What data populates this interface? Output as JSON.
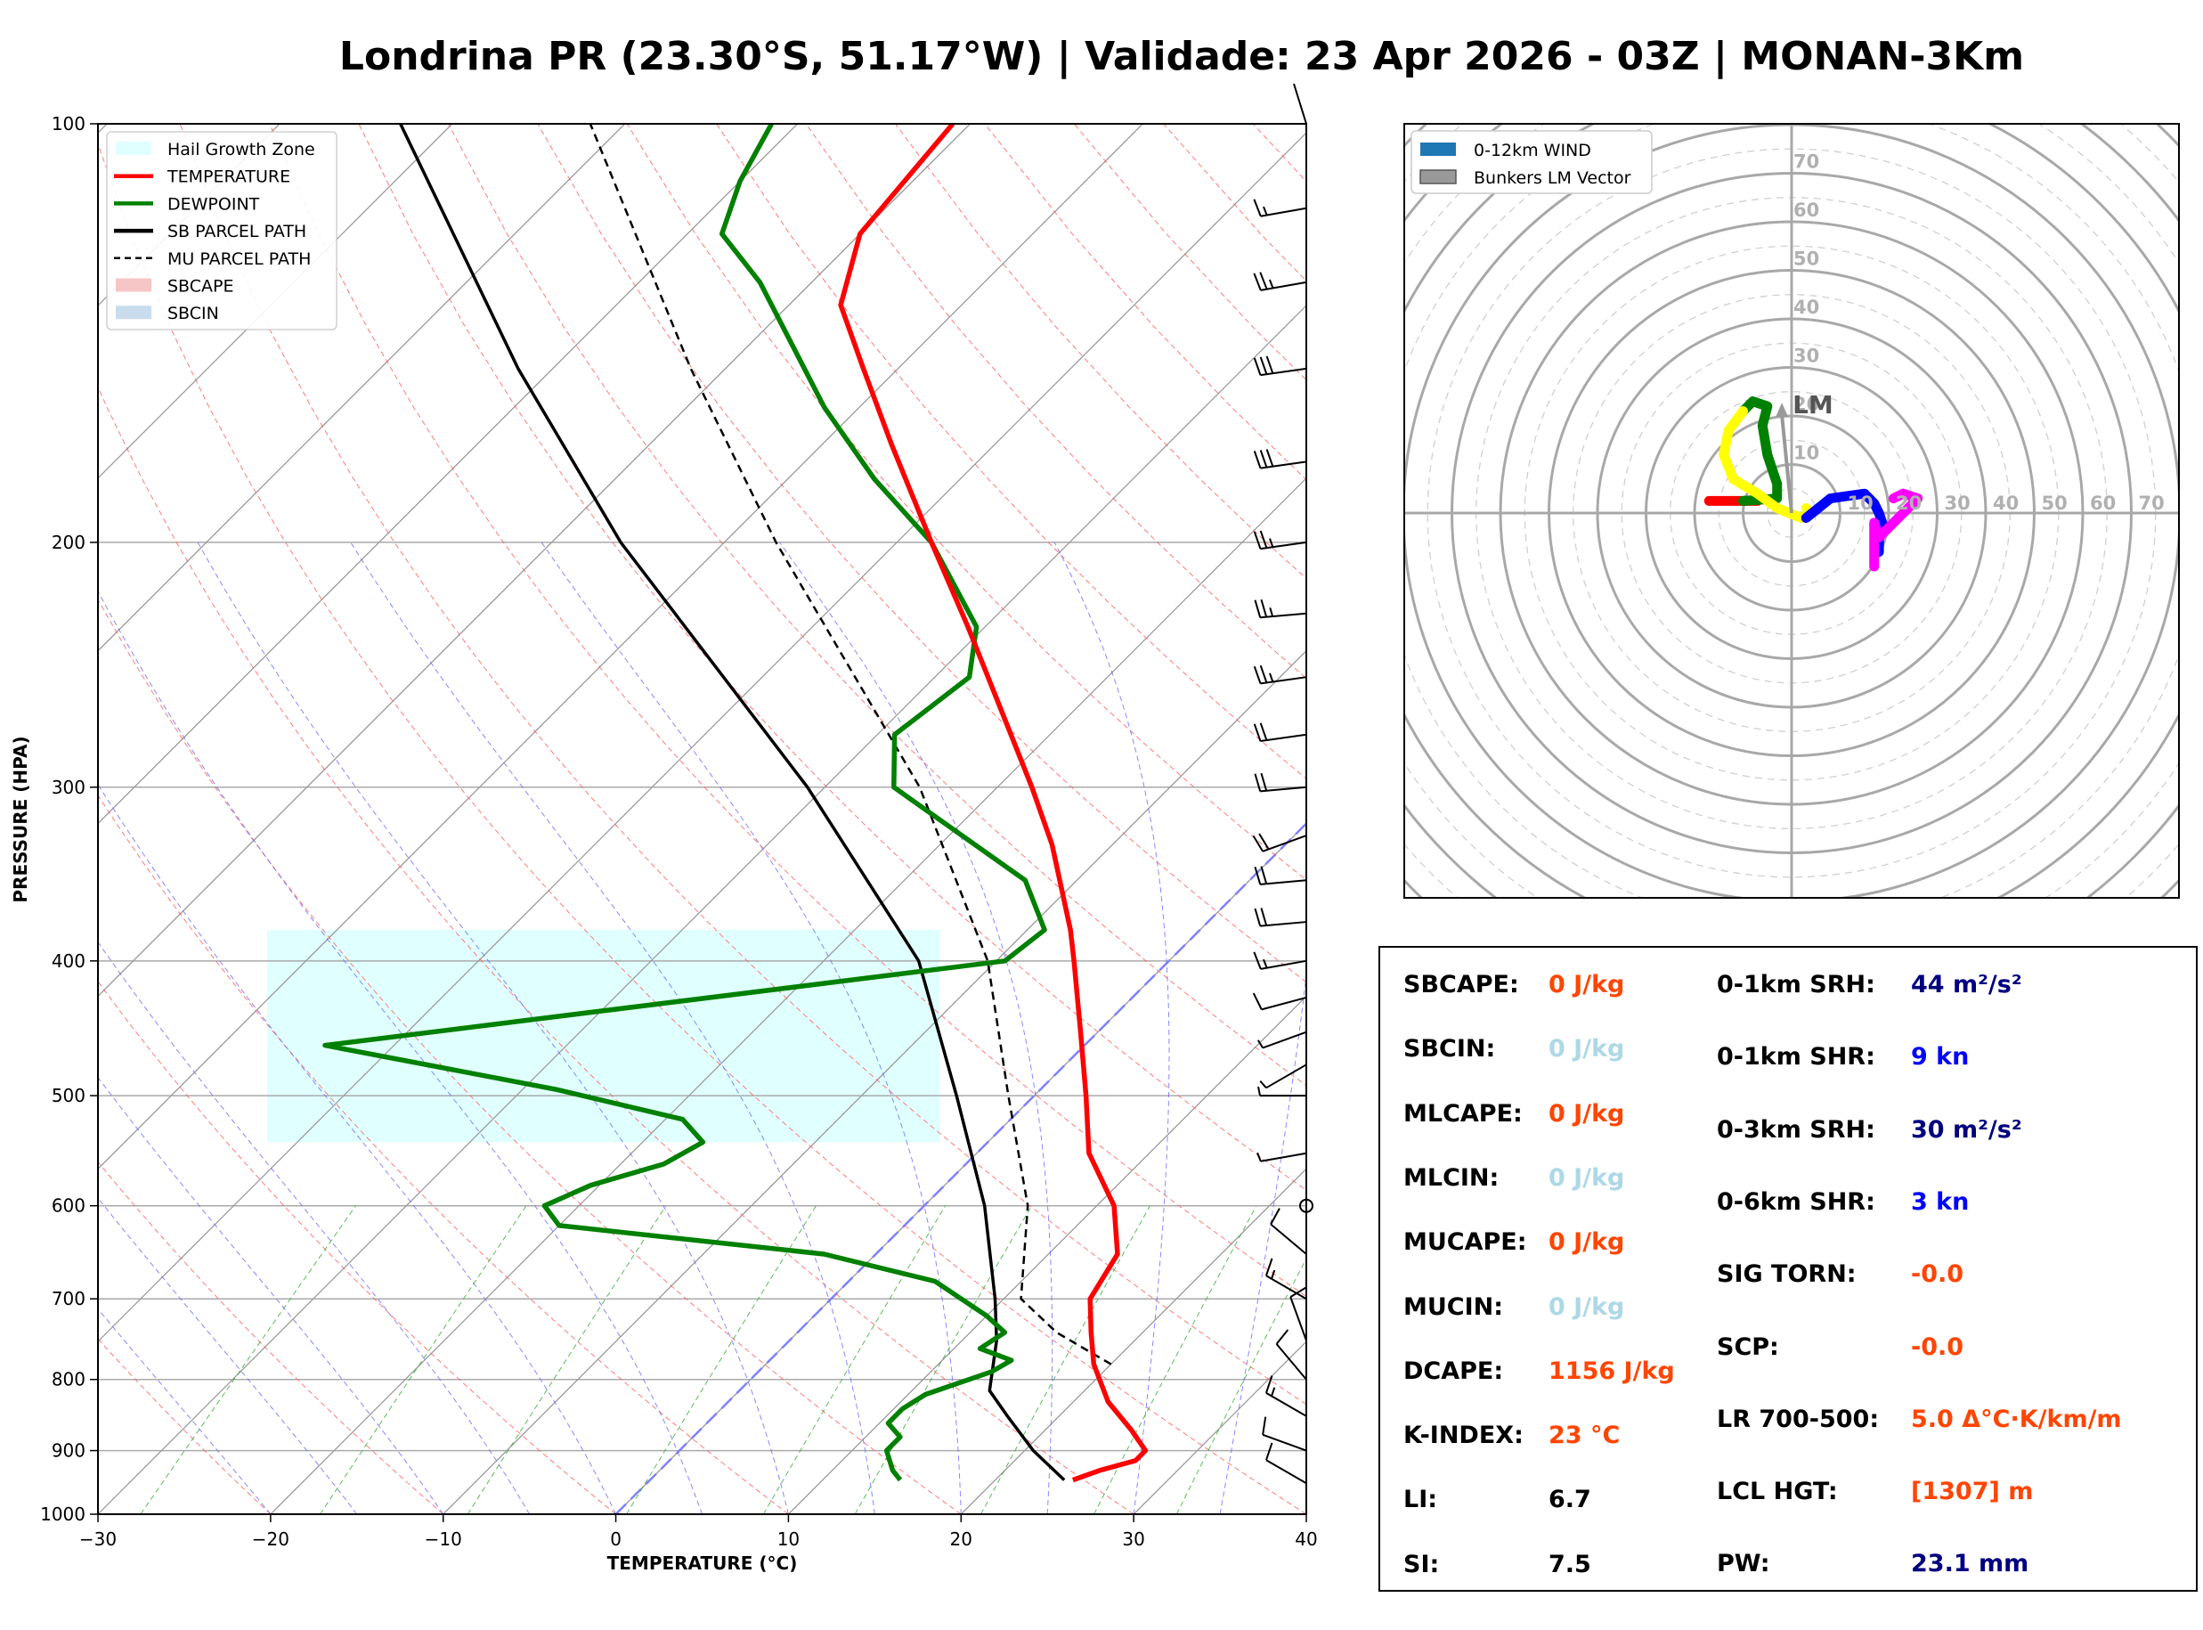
{
  "title": "Londrina PR (23.30°S, 51.17°W) | Validade: 23 Apr 2026 - 03Z | MONAN-3Km",
  "chart_data": [
    {
      "type": "line",
      "name": "skew-t",
      "xlabel": "TEMPERATURE (°C)",
      "ylabel": "PRESSURE (HPA)",
      "xlim": [
        -30,
        40
      ],
      "ylim": [
        1000,
        100
      ],
      "y_scale": "log",
      "x_ticks": [
        "−30",
        "−20",
        "−10",
        "0",
        "10",
        "20",
        "30",
        "40"
      ],
      "y_ticks": [
        "100",
        "200",
        "300",
        "400",
        "500",
        "600",
        "700",
        "800",
        "900",
        "1000"
      ],
      "legend": {
        "placement": "upper-left",
        "entries": [
          {
            "label": "Hail Growth Zone",
            "color": "#e0ffff",
            "kind": "patch"
          },
          {
            "label": "TEMPERATURE",
            "color": "#ff0000",
            "kind": "line"
          },
          {
            "label": "DEWPOINT",
            "color": "#008000",
            "kind": "line"
          },
          {
            "label": "SB PARCEL PATH",
            "color": "#000000",
            "kind": "line"
          },
          {
            "label": "MU PARCEL PATH",
            "color": "#000000",
            "kind": "dashed"
          },
          {
            "label": "SBCAPE",
            "color": "#f6c5c5",
            "kind": "patch"
          },
          {
            "label": "SBCIN",
            "color": "#c9dcee",
            "kind": "patch"
          }
        ]
      },
      "hail_growth_zone": {
        "p_top": 380,
        "p_bottom": 540
      },
      "temperature": [
        {
          "p": 945,
          "t": 24.5
        },
        {
          "p": 930,
          "t": 25.5
        },
        {
          "p": 915,
          "t": 27.0
        },
        {
          "p": 900,
          "t": 27.0
        },
        {
          "p": 870,
          "t": 25.0
        },
        {
          "p": 830,
          "t": 22.0
        },
        {
          "p": 780,
          "t": 19.0
        },
        {
          "p": 740,
          "t": 17.0
        },
        {
          "p": 700,
          "t": 15.0
        },
        {
          "p": 650,
          "t": 14.0
        },
        {
          "p": 600,
          "t": 11.0
        },
        {
          "p": 550,
          "t": 6.5
        },
        {
          "p": 500,
          "t": 3.0
        },
        {
          "p": 450,
          "t": -1.0
        },
        {
          "p": 400,
          "t": -5.5
        },
        {
          "p": 380,
          "t": -7.5
        },
        {
          "p": 330,
          "t": -13.5
        },
        {
          "p": 300,
          "t": -18.0
        },
        {
          "p": 260,
          "t": -25.0
        },
        {
          "p": 230,
          "t": -31.0
        },
        {
          "p": 200,
          "t": -38.0
        },
        {
          "p": 170,
          "t": -46.0
        },
        {
          "p": 150,
          "t": -52.0
        },
        {
          "p": 135,
          "t": -57.0
        },
        {
          "p": 120,
          "t": -60.0
        },
        {
          "p": 100,
          "t": -61.0
        }
      ],
      "dewpoint": [
        {
          "p": 945,
          "t": 14.5
        },
        {
          "p": 930,
          "t": 13.5
        },
        {
          "p": 900,
          "t": 12.0
        },
        {
          "p": 880,
          "t": 12.0
        },
        {
          "p": 860,
          "t": 10.5
        },
        {
          "p": 840,
          "t": 10.5
        },
        {
          "p": 820,
          "t": 11.0
        },
        {
          "p": 790,
          "t": 13.5
        },
        {
          "p": 775,
          "t": 14.0
        },
        {
          "p": 760,
          "t": 11.5
        },
        {
          "p": 740,
          "t": 12.0
        },
        {
          "p": 720,
          "t": 10.0
        },
        {
          "p": 680,
          "t": 5.0
        },
        {
          "p": 650,
          "t": -3.0
        },
        {
          "p": 620,
          "t": -20.0
        },
        {
          "p": 600,
          "t": -22.0
        },
        {
          "p": 580,
          "t": -20.5
        },
        {
          "p": 560,
          "t": -17.5
        },
        {
          "p": 540,
          "t": -16.5
        },
        {
          "p": 520,
          "t": -19.0
        },
        {
          "p": 495,
          "t": -28.0
        },
        {
          "p": 460,
          "t": -44.0
        },
        {
          "p": 400,
          "t": -9.5
        },
        {
          "p": 380,
          "t": -9.0
        },
        {
          "p": 350,
          "t": -13.0
        },
        {
          "p": 300,
          "t": -26.0
        },
        {
          "p": 275,
          "t": -29.0
        },
        {
          "p": 250,
          "t": -28.0
        },
        {
          "p": 230,
          "t": -30.5
        },
        {
          "p": 200,
          "t": -38.0
        },
        {
          "p": 180,
          "t": -45.0
        },
        {
          "p": 160,
          "t": -52.0
        },
        {
          "p": 130,
          "t": -63.0
        },
        {
          "p": 120,
          "t": -68.0
        },
        {
          "p": 110,
          "t": -70.0
        },
        {
          "p": 100,
          "t": -71.5
        }
      ],
      "sb_parcel": [
        {
          "p": 945,
          "t": 24.0
        },
        {
          "p": 900,
          "t": 20.5
        },
        {
          "p": 850,
          "t": 17.0
        },
        {
          "p": 815,
          "t": 14.5
        },
        {
          "p": 750,
          "t": 12.0
        },
        {
          "p": 700,
          "t": 9.5
        },
        {
          "p": 600,
          "t": 3.5
        },
        {
          "p": 500,
          "t": -4.5
        },
        {
          "p": 400,
          "t": -14.5
        },
        {
          "p": 300,
          "t": -31.0
        },
        {
          "p": 200,
          "t": -56.0
        },
        {
          "p": 150,
          "t": -72.0
        },
        {
          "p": 100,
          "t": -93.0
        }
      ],
      "mu_parcel": [
        {
          "p": 780,
          "t": 20.0
        },
        {
          "p": 740,
          "t": 15.0
        },
        {
          "p": 700,
          "t": 11.0
        },
        {
          "p": 600,
          "t": 6.0
        },
        {
          "p": 500,
          "t": -1.5
        },
        {
          "p": 400,
          "t": -10.5
        },
        {
          "p": 300,
          "t": -24.5
        },
        {
          "p": 200,
          "t": -47.0
        },
        {
          "p": 150,
          "t": -62.0
        },
        {
          "p": 100,
          "t": -82.0
        }
      ],
      "wind_barbs": [
        {
          "p": 950,
          "dir": 300,
          "spd": 10
        },
        {
          "p": 900,
          "dir": 290,
          "spd": 12
        },
        {
          "p": 850,
          "dir": 300,
          "spd": 15
        },
        {
          "p": 800,
          "dir": 320,
          "spd": 10
        },
        {
          "p": 750,
          "dir": 340,
          "spd": 12
        },
        {
          "p": 700,
          "dir": 300,
          "spd": 15
        },
        {
          "p": 650,
          "dir": 310,
          "spd": 10
        },
        {
          "p": 600,
          "dir": 0,
          "spd": 0
        },
        {
          "p": 550,
          "dir": 260,
          "spd": 8
        },
        {
          "p": 500,
          "dir": 270,
          "spd": 5
        },
        {
          "p": 475,
          "dir": 240,
          "spd": 5
        },
        {
          "p": 450,
          "dir": 250,
          "spd": 8
        },
        {
          "p": 425,
          "dir": 255,
          "spd": 10
        },
        {
          "p": 400,
          "dir": 260,
          "spd": 15
        },
        {
          "p": 375,
          "dir": 265,
          "spd": 20
        },
        {
          "p": 350,
          "dir": 265,
          "spd": 20
        },
        {
          "p": 325,
          "dir": 250,
          "spd": 20
        },
        {
          "p": 300,
          "dir": 265,
          "spd": 20
        },
        {
          "p": 275,
          "dir": 262,
          "spd": 20
        },
        {
          "p": 250,
          "dir": 262,
          "spd": 25
        },
        {
          "p": 225,
          "dir": 265,
          "spd": 25
        },
        {
          "p": 200,
          "dir": 262,
          "spd": 25
        },
        {
          "p": 175,
          "dir": 262,
          "spd": 30
        },
        {
          "p": 150,
          "dir": 262,
          "spd": 30
        },
        {
          "p": 130,
          "dir": 260,
          "spd": 25
        },
        {
          "p": 115,
          "dir": 260,
          "spd": 15
        }
      ]
    },
    {
      "type": "hodograph",
      "name": "hodograph",
      "ring_labels": [
        "10",
        "20",
        "30",
        "40",
        "50",
        "60",
        "70"
      ],
      "range": [
        -80,
        80
      ],
      "legend": {
        "placement": "upper-left",
        "entries": [
          {
            "label": "0-12km WIND",
            "color": "#1f77b4"
          },
          {
            "label": "Bunkers LM Vector",
            "color": "#999999"
          }
        ]
      },
      "lm_label": "LM",
      "lm_vector": {
        "u": -2,
        "v": 22
      },
      "segments": [
        {
          "color": "#ff0000",
          "points": [
            [
              -17,
              2.5
            ],
            [
              -7,
              2.5
            ]
          ]
        },
        {
          "color": "#008000",
          "points": [
            [
              -10,
              2.5
            ],
            [
              -3,
              3
            ],
            [
              -3,
              6
            ],
            [
              -5,
              12
            ],
            [
              -6,
              18
            ],
            [
              -5,
              22
            ],
            [
              -8,
              23
            ],
            [
              -10,
              21
            ]
          ]
        },
        {
          "color": "#ffff00",
          "points": [
            [
              -10,
              21
            ],
            [
              -13,
              17
            ],
            [
              -14,
              12
            ],
            [
              -12,
              7
            ],
            [
              -7,
              4
            ],
            [
              -3,
              1
            ],
            [
              2,
              -1
            ],
            [
              4,
              0
            ],
            [
              3,
              1
            ]
          ]
        },
        {
          "color": "#0000ff",
          "points": [
            [
              3,
              -1
            ],
            [
              8,
              3
            ],
            [
              15,
              4
            ],
            [
              17,
              2
            ],
            [
              18,
              0
            ],
            [
              19,
              -3
            ],
            [
              18,
              -5
            ],
            [
              18,
              -6
            ],
            [
              18,
              -8
            ]
          ]
        },
        {
          "color": "#ff00ff",
          "points": [
            [
              21,
              3
            ],
            [
              23,
              4
            ],
            [
              26,
              3
            ],
            [
              18,
              -5
            ],
            [
              17,
              -2
            ],
            [
              17,
              -5
            ],
            [
              17,
              -8
            ],
            [
              17,
              -11
            ]
          ]
        }
      ]
    }
  ],
  "indices": {
    "left": [
      {
        "label": "SBCAPE:",
        "value": "0 J/kg",
        "color": "#ff4500"
      },
      {
        "label": "SBCIN:",
        "value": "0 J/kg",
        "color": "#add8e6"
      },
      {
        "label": "MLCAPE:",
        "value": "0 J/kg",
        "color": "#ff4500"
      },
      {
        "label": "MLCIN:",
        "value": "0 J/kg",
        "color": "#add8e6"
      },
      {
        "label": "MUCAPE:",
        "value": "0 J/kg",
        "color": "#ff4500"
      },
      {
        "label": "MUCIN:",
        "value": "0 J/kg",
        "color": "#add8e6"
      },
      {
        "label": "DCAPE:",
        "value": "1156 J/kg",
        "color": "#ff4500"
      },
      {
        "label": "K-INDEX:",
        "value": "23 °C",
        "color": "#ff4500"
      },
      {
        "label": "LI:",
        "value": "6.7",
        "color": "#000000"
      },
      {
        "label": "SI:",
        "value": "7.5",
        "color": "#000000"
      }
    ],
    "right": [
      {
        "label": "0-1km SRH:",
        "value": "44 m²/s²",
        "color": "#000080"
      },
      {
        "label": "0-1km SHR:",
        "value": "9 kn",
        "color": "#0000ff"
      },
      {
        "label": "0-3km SRH:",
        "value": "30 m²/s²",
        "color": "#000080"
      },
      {
        "label": "0-6km SHR:",
        "value": "3 kn",
        "color": "#0000ff"
      },
      {
        "label": "SIG TORN:",
        "value": "-0.0",
        "color": "#ff4500"
      },
      {
        "label": "SCP:",
        "value": "-0.0",
        "color": "#ff4500"
      },
      {
        "label": "LR 700-500:",
        "value": "5.0 Δ°C·K/km/m",
        "color": "#ff4500"
      },
      {
        "label": "LCL HGT:",
        "value": "[1307] m",
        "color": "#ff4500"
      },
      {
        "label": "PW:",
        "value": "23.1 mm",
        "color": "#000080"
      }
    ]
  }
}
